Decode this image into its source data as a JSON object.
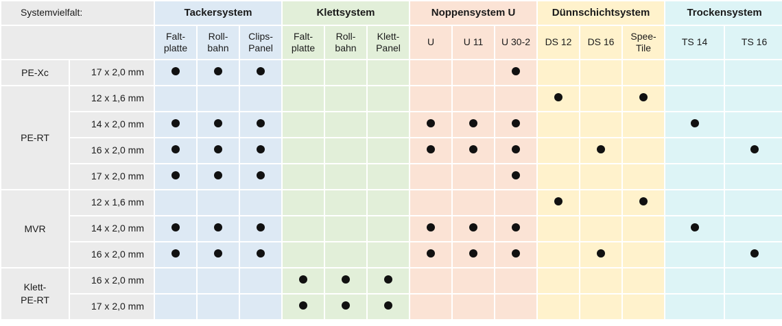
{
  "corner_label": "Systemvielfalt:",
  "groups": [
    {
      "key": "tacker",
      "label": "Tackersystem",
      "span": 3
    },
    {
      "key": "klett",
      "label": "Klettsystem",
      "span": 3
    },
    {
      "key": "noppen",
      "label": "Noppensystem U",
      "span": 3
    },
    {
      "key": "duenn",
      "label": "Dünnschichtsystem",
      "span": 3
    },
    {
      "key": "trocken",
      "label": "Trockensystem",
      "span": 2
    }
  ],
  "columns": [
    {
      "group": "tacker",
      "line1": "Falt-",
      "line2": "platte"
    },
    {
      "group": "tacker",
      "line1": "Roll-",
      "line2": "bahn"
    },
    {
      "group": "tacker",
      "line1": "Clips-",
      "line2": "Panel"
    },
    {
      "group": "klett",
      "line1": "Falt-",
      "line2": "platte"
    },
    {
      "group": "klett",
      "line1": "Roll-",
      "line2": "bahn"
    },
    {
      "group": "klett",
      "line1": "Klett-",
      "line2": "Panel"
    },
    {
      "group": "noppen",
      "line1": "U",
      "line2": ""
    },
    {
      "group": "noppen",
      "line1": "U 11",
      "line2": ""
    },
    {
      "group": "noppen",
      "line1": "U 30-2",
      "line2": ""
    },
    {
      "group": "duenn",
      "line1": "DS 12",
      "line2": ""
    },
    {
      "group": "duenn",
      "line1": "DS 16",
      "line2": ""
    },
    {
      "group": "duenn",
      "line1": "Spee-",
      "line2": "Tile"
    },
    {
      "group": "trocken",
      "line1": "TS 14",
      "line2": ""
    },
    {
      "group": "trocken",
      "line1": "TS 16",
      "line2": ""
    }
  ],
  "materials": [
    {
      "line1": "PE-Xc",
      "line2": "",
      "rows": [
        {
          "dimension": "17 x 2,0 mm",
          "marks": [
            1,
            1,
            1,
            0,
            0,
            0,
            0,
            0,
            1,
            0,
            0,
            0,
            0,
            0
          ]
        }
      ]
    },
    {
      "line1": "PE-RT",
      "line2": "",
      "rows": [
        {
          "dimension": "12 x 1,6 mm",
          "marks": [
            0,
            0,
            0,
            0,
            0,
            0,
            0,
            0,
            0,
            1,
            0,
            1,
            0,
            0
          ]
        },
        {
          "dimension": "14 x 2,0 mm",
          "marks": [
            1,
            1,
            1,
            0,
            0,
            0,
            1,
            1,
            1,
            0,
            0,
            0,
            1,
            0
          ]
        },
        {
          "dimension": "16 x 2,0 mm",
          "marks": [
            1,
            1,
            1,
            0,
            0,
            0,
            1,
            1,
            1,
            0,
            1,
            0,
            0,
            1
          ]
        },
        {
          "dimension": "17 x 2,0 mm",
          "marks": [
            1,
            1,
            1,
            0,
            0,
            0,
            0,
            0,
            1,
            0,
            0,
            0,
            0,
            0
          ]
        }
      ]
    },
    {
      "line1": "MVR",
      "line2": "",
      "rows": [
        {
          "dimension": "12 x 1,6 mm",
          "marks": [
            0,
            0,
            0,
            0,
            0,
            0,
            0,
            0,
            0,
            1,
            0,
            1,
            0,
            0
          ]
        },
        {
          "dimension": "14 x 2,0 mm",
          "marks": [
            1,
            1,
            1,
            0,
            0,
            0,
            1,
            1,
            1,
            0,
            0,
            0,
            1,
            0
          ]
        },
        {
          "dimension": "16 x 2,0 mm",
          "marks": [
            1,
            1,
            1,
            0,
            0,
            0,
            1,
            1,
            1,
            0,
            1,
            0,
            0,
            1
          ]
        }
      ]
    },
    {
      "line1": "Klett-",
      "line2": "PE-RT",
      "rows": [
        {
          "dimension": "16 x 2,0 mm",
          "marks": [
            0,
            0,
            0,
            1,
            1,
            1,
            0,
            0,
            0,
            0,
            0,
            0,
            0,
            0
          ]
        },
        {
          "dimension": "17 x 2,0 mm",
          "marks": [
            0,
            0,
            0,
            1,
            1,
            1,
            0,
            0,
            0,
            0,
            0,
            0,
            0,
            0
          ]
        }
      ]
    }
  ]
}
